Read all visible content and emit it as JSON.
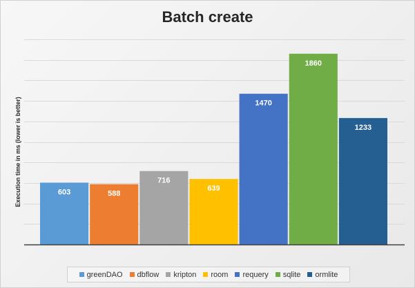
{
  "chart_data": {
    "type": "bar",
    "title": "Batch create",
    "xlabel": "",
    "ylabel": "Execution time in ms  (lower is better)",
    "ylim": [
      0,
      2000
    ],
    "grid": true,
    "legend_position": "bottom",
    "series": [
      {
        "name": "greenDAO",
        "value": 603,
        "color": "#5b9bd5"
      },
      {
        "name": "dbflow",
        "value": 588,
        "color": "#ed7d31"
      },
      {
        "name": "kripton",
        "value": 716,
        "color": "#a5a5a5"
      },
      {
        "name": "room",
        "value": 639,
        "color": "#ffc000"
      },
      {
        "name": "requery",
        "value": 1470,
        "color": "#4472c4"
      },
      {
        "name": "sqlite",
        "value": 1860,
        "color": "#70ad47"
      },
      {
        "name": "ormlite",
        "value": 1233,
        "color": "#255e91"
      }
    ]
  }
}
